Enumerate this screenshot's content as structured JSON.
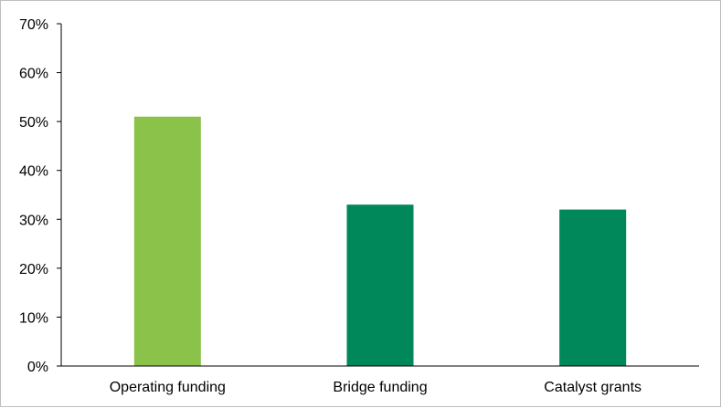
{
  "chart_data": {
    "type": "bar",
    "categories": [
      "Operating funding",
      "Bridge funding",
      "Catalyst grants"
    ],
    "values": [
      51,
      33,
      32
    ],
    "value_unit": "%",
    "colors": [
      "#8bc34a",
      "#00875a",
      "#00875a"
    ],
    "ylim": [
      0,
      70
    ],
    "yticks": [
      0,
      10,
      20,
      30,
      40,
      50,
      60,
      70
    ],
    "ytick_labels": [
      "0%",
      "10%",
      "20%",
      "30%",
      "40%",
      "50%",
      "60%",
      "70%"
    ],
    "grid": false,
    "legend": "none",
    "title": "",
    "xlabel": "",
    "ylabel": ""
  }
}
